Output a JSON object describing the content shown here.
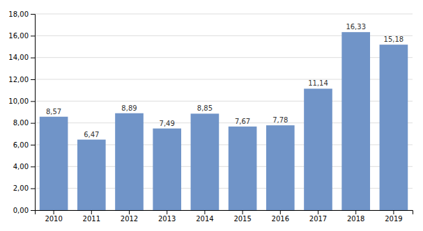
{
  "chart_data": {
    "type": "bar",
    "categories": [
      "2010",
      "2011",
      "2012",
      "2013",
      "2014",
      "2015",
      "2016",
      "2017",
      "2018",
      "2019"
    ],
    "values": [
      8.57,
      6.47,
      8.89,
      7.49,
      8.85,
      7.67,
      7.78,
      11.14,
      16.33,
      15.18
    ],
    "value_labels": [
      "8,57",
      "6,47",
      "8,89",
      "7,49",
      "8,85",
      "7,67",
      "7,78",
      "11,14",
      "16,33",
      "15,18"
    ],
    "data_labels": true,
    "color": "#7094c8",
    "ylim": [
      0,
      18
    ],
    "yticks": [
      {
        "value": 0,
        "label": "0,00"
      },
      {
        "value": 2,
        "label": "2,00"
      },
      {
        "value": 4,
        "label": "4,00"
      },
      {
        "value": 6,
        "label": "6,00"
      },
      {
        "value": 8,
        "label": "8,00"
      },
      {
        "value": 10,
        "label": "10,00"
      },
      {
        "value": 12,
        "label": "12,00"
      },
      {
        "value": 14,
        "label": "14,00"
      },
      {
        "value": 16,
        "label": "16,00"
      },
      {
        "value": 18,
        "label": "18,00"
      }
    ],
    "grid": true
  }
}
